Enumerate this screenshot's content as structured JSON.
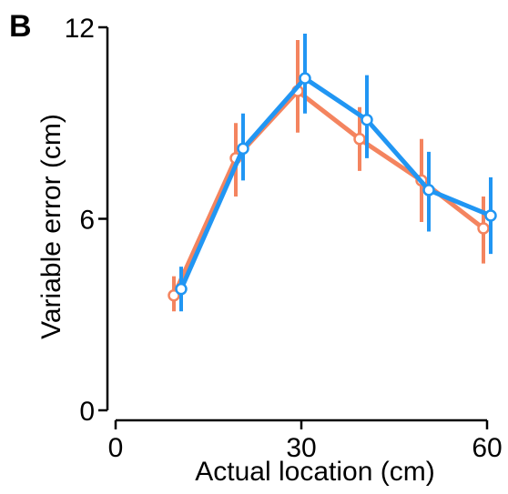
{
  "panel_label": "B",
  "chart_data": {
    "type": "line",
    "xlabel": "Actual location (cm)",
    "ylabel": "Variable error (cm)",
    "xlim": [
      0,
      60
    ],
    "ylim": [
      0,
      12
    ],
    "xticks": [
      0,
      30,
      60
    ],
    "yticks": [
      0,
      6,
      12
    ],
    "grid": false,
    "legend": "none",
    "series": [
      {
        "color": "#F4845F",
        "x": [
          10,
          20,
          30,
          40,
          50,
          60
        ],
        "y": [
          3.6,
          7.9,
          10.0,
          8.5,
          7.2,
          5.7
        ],
        "err_low": [
          3.1,
          6.7,
          8.7,
          7.5,
          5.9,
          4.6
        ],
        "err_high": [
          4.2,
          9.0,
          11.6,
          9.5,
          8.5,
          6.7
        ]
      },
      {
        "color": "#2196F3",
        "x": [
          10,
          20,
          30,
          40,
          50,
          60
        ],
        "y": [
          3.8,
          8.2,
          10.4,
          9.1,
          6.9,
          6.1
        ],
        "err_low": [
          3.1,
          7.2,
          9.3,
          7.9,
          5.6,
          4.9
        ],
        "err_high": [
          4.5,
          9.3,
          11.8,
          10.5,
          8.1,
          7.3
        ]
      }
    ]
  }
}
